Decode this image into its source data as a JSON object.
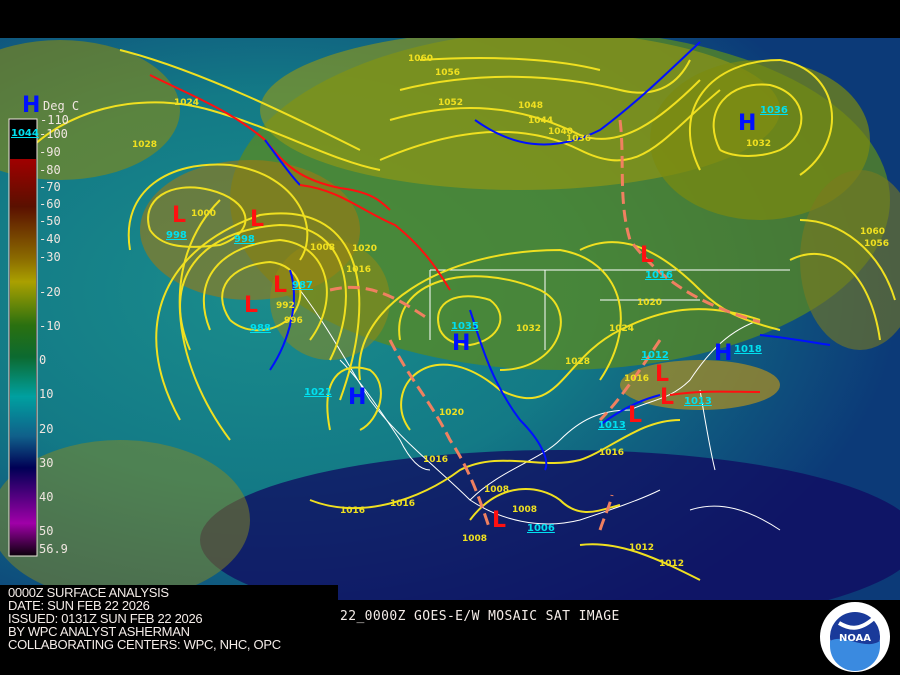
{
  "legend": {
    "unit_label": "Deg C",
    "top_label": "-110",
    "ticks": [
      "-100",
      "-90",
      "-80",
      "-70",
      "-60",
      "-50",
      "-40",
      "-30",
      "-20",
      "-10",
      "0",
      "10",
      "20",
      "30",
      "40",
      "50",
      "56.9"
    ]
  },
  "info": {
    "line1": "0000Z SURFACE ANALYSIS",
    "line2": "DATE: SUN FEB 22 2026",
    "line3": "ISSUED: 0131Z SUN FEB 22 2026",
    "line4": "BY WPC ANALYST ASHERMAN",
    "line5": "COLLABORATING CENTERS: WPC, NHC, OPC"
  },
  "sat_title": "22_0000Z GOES-E/W MOSAIC SAT IMAGE",
  "logo_text": "NOAA",
  "colors": {
    "isobar": "#f0e020",
    "high": "#0010ff",
    "low": "#ff1010",
    "center_value": "#00e0f0",
    "trough": "#f08060"
  },
  "pressure_centers": [
    {
      "type": "H",
      "value": "1044"
    },
    {
      "type": "H",
      "value": "1036"
    },
    {
      "type": "L",
      "value": "998"
    },
    {
      "type": "L",
      "value": "998"
    },
    {
      "type": "L",
      "value": "987"
    },
    {
      "type": "L",
      "value": "988"
    },
    {
      "type": "H",
      "value": "1021"
    },
    {
      "type": "H",
      "value": "1035"
    },
    {
      "type": "L",
      "value": "1012"
    },
    {
      "type": "L",
      "value": "1013"
    },
    {
      "type": "L",
      "value": "1013"
    },
    {
      "type": "H",
      "value": "1018"
    },
    {
      "type": "L",
      "value": "1016"
    },
    {
      "type": "L",
      "value": "1006"
    }
  ],
  "isobar_labels": [
    "1060",
    "1056",
    "1052",
    "1048",
    "1044",
    "1040",
    "1036",
    "1032",
    "1028",
    "1024",
    "1000",
    "1020",
    "1016",
    "1008",
    "992",
    "996",
    "1032",
    "1024",
    "1028",
    "1020",
    "1016",
    "1020",
    "1016",
    "1016",
    "1016",
    "1016",
    "1008",
    "1008",
    "1008",
    "1012",
    "1012",
    "1060",
    "1056"
  ]
}
